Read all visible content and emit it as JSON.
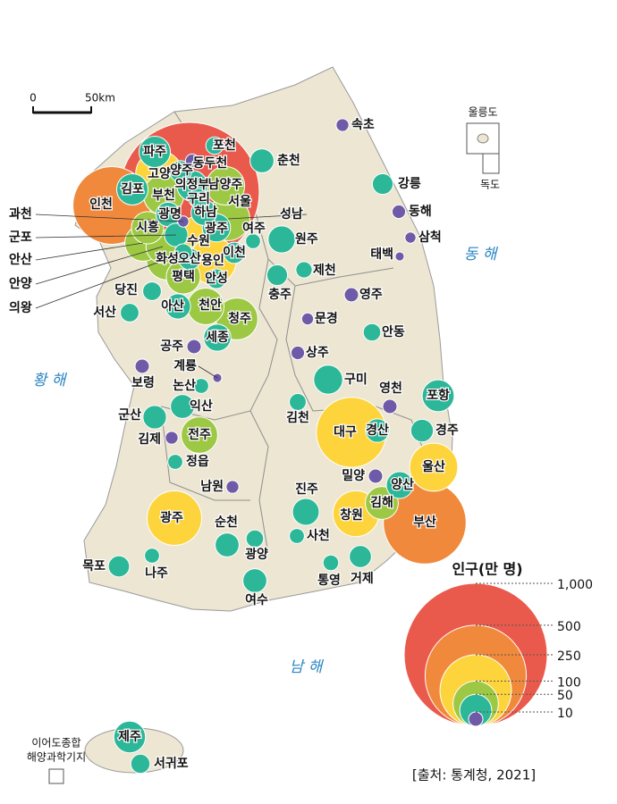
{
  "scale_bar": {
    "start": "0",
    "end": "50km"
  },
  "islands": {
    "ulleungdo": "울릉도",
    "dokdo": "독도"
  },
  "seas": {
    "east": "동 해",
    "west": "황 해",
    "south": "남 해"
  },
  "ieodo": [
    "이어도종합",
    "해양과학기지"
  ],
  "source": "[출처: 통계청, 2021]",
  "legend": {
    "title": "인구(만 명)",
    "items": [
      {
        "value": 1000,
        "label": "1,000",
        "color": "#ea5a4c"
      },
      {
        "value": 500,
        "color": "#f0893c"
      },
      {
        "value": 250,
        "color": "#fdd43c"
      },
      {
        "value": 100,
        "color": "#9dc843"
      },
      {
        "value": 50,
        "color": "#2cb799"
      },
      {
        "value": 10,
        "color": "#6f5aa8"
      }
    ]
  },
  "cities": [
    {
      "name": "서울",
      "population": 950
    },
    {
      "name": "인천",
      "population": 295
    },
    {
      "name": "파주",
      "population": 48
    },
    {
      "name": "포천",
      "population": 15
    },
    {
      "name": "동두천",
      "population": 9
    },
    {
      "name": "고양",
      "population": 108
    },
    {
      "name": "양주",
      "population": 23
    },
    {
      "name": "김포",
      "population": 48
    },
    {
      "name": "의정부",
      "population": 46
    },
    {
      "name": "남양주",
      "population": 73
    },
    {
      "name": "부천",
      "population": 80
    },
    {
      "name": "구리",
      "population": 19
    },
    {
      "name": "광명",
      "population": 29
    },
    {
      "name": "하남",
      "population": 32
    },
    {
      "name": "과천",
      "population": 6
    },
    {
      "name": "성남",
      "population": 93
    },
    {
      "name": "시흥",
      "population": 51
    },
    {
      "name": "군포",
      "population": 27
    },
    {
      "name": "안산",
      "population": 65
    },
    {
      "name": "안양",
      "population": 55
    },
    {
      "name": "의왕",
      "population": 16
    },
    {
      "name": "수원",
      "population": 120
    },
    {
      "name": "광주",
      "population": 39
    },
    {
      "name": "여주",
      "population": 11
    },
    {
      "name": "이천",
      "population": 22
    },
    {
      "name": "화성",
      "population": 85
    },
    {
      "name": "오산",
      "population": 23
    },
    {
      "name": "용인",
      "population": 107
    },
    {
      "name": "평택",
      "population": 57
    },
    {
      "name": "안성",
      "population": 19
    },
    {
      "name": "춘천",
      "population": 28
    },
    {
      "name": "속초",
      "population": 8
    },
    {
      "name": "강릉",
      "population": 21
    },
    {
      "name": "동해",
      "population": 9
    },
    {
      "name": "삼척",
      "population": 6
    },
    {
      "name": "태백",
      "population": 4
    },
    {
      "name": "원주",
      "population": 36
    },
    {
      "name": "제천",
      "population": 13
    },
    {
      "name": "충주",
      "population": 21
    },
    {
      "name": "영주",
      "population": 10
    },
    {
      "name": "문경",
      "population": 7
    },
    {
      "name": "안동",
      "population": 15
    },
    {
      "name": "상주",
      "population": 9
    },
    {
      "name": "구미",
      "population": 41
    },
    {
      "name": "영천",
      "population": 10
    },
    {
      "name": "포항",
      "population": 50
    },
    {
      "name": "김천",
      "population": 14
    },
    {
      "name": "경산",
      "population": 27
    },
    {
      "name": "경주",
      "population": 25
    },
    {
      "name": "대구",
      "population": 240
    },
    {
      "name": "밀양",
      "population": 10
    },
    {
      "name": "양산",
      "population": 35
    },
    {
      "name": "김해",
      "population": 53
    },
    {
      "name": "울산",
      "population": 113
    },
    {
      "name": "부산",
      "population": 335
    },
    {
      "name": "창원",
      "population": 103
    },
    {
      "name": "진주",
      "population": 35
    },
    {
      "name": "사천",
      "population": 11
    },
    {
      "name": "통영",
      "population": 12
    },
    {
      "name": "거제",
      "population": 24
    },
    {
      "name": "당진",
      "population": 17
    },
    {
      "name": "서산",
      "population": 17
    },
    {
      "name": "아산",
      "population": 31
    },
    {
      "name": "천안",
      "population": 66
    },
    {
      "name": "청주",
      "population": 85
    },
    {
      "name": "세종",
      "population": 36
    },
    {
      "name": "공주",
      "population": 10
    },
    {
      "name": "보령",
      "population": 10
    },
    {
      "name": "계룡",
      "population": 4
    },
    {
      "name": "논산",
      "population": 11
    },
    {
      "name": "익산",
      "population": 28
    },
    {
      "name": "군산",
      "population": 27
    },
    {
      "name": "김제",
      "population": 8
    },
    {
      "name": "전주",
      "population": 65
    },
    {
      "name": "정읍",
      "population": 11
    },
    {
      "name": "남원",
      "population": 8
    },
    {
      "name": "광주",
      "population": 145
    },
    {
      "name": "순천",
      "population": 28
    },
    {
      "name": "광양",
      "population": 15
    },
    {
      "name": "여수",
      "population": 28
    },
    {
      "name": "목포",
      "population": 22
    },
    {
      "name": "나주",
      "population": 11
    },
    {
      "name": "제주",
      "population": 49
    },
    {
      "name": "서귀포",
      "population": 18
    }
  ]
}
